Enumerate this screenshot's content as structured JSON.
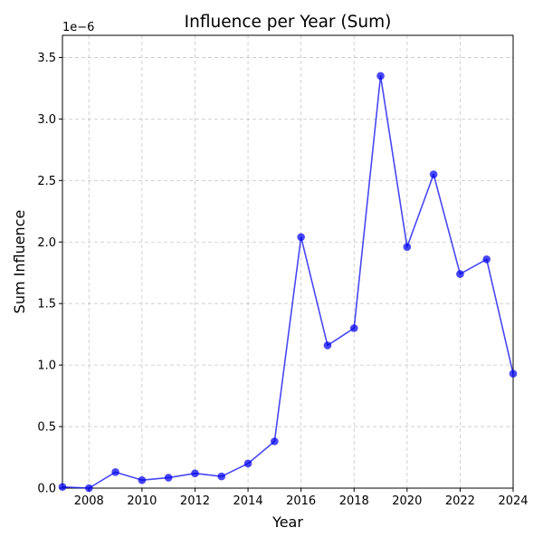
{
  "chart_data": {
    "type": "line",
    "title": "Influence per Year (Sum)",
    "xlabel": "Year",
    "ylabel": "Sum Influence",
    "y_offset_label": "1e−6",
    "x": [
      2007,
      2008,
      2009,
      2010,
      2011,
      2012,
      2013,
      2014,
      2015,
      2016,
      2017,
      2018,
      2019,
      2020,
      2021,
      2022,
      2023,
      2024
    ],
    "series": [
      {
        "values": [
          0.01,
          0.0,
          0.13,
          0.065,
          0.085,
          0.12,
          0.095,
          0.2,
          0.38,
          2.04,
          1.16,
          1.3,
          3.35,
          1.96,
          2.55,
          1.74,
          1.86,
          0.93
        ],
        "color": "#0000ee"
      }
    ],
    "xlim": [
      2007,
      2024
    ],
    "ylim": [
      0,
      3.68
    ],
    "x_ticks": [
      "2008",
      "2010",
      "2012",
      "2014",
      "2016",
      "2018",
      "2020",
      "2022",
      "2024"
    ],
    "y_ticks": [
      "0.0",
      "0.5",
      "1.0",
      "1.5",
      "2.0",
      "2.5",
      "3.0",
      "3.5"
    ],
    "grid": true,
    "grid_style": "dashed",
    "legend": "none",
    "marker": "circle"
  }
}
